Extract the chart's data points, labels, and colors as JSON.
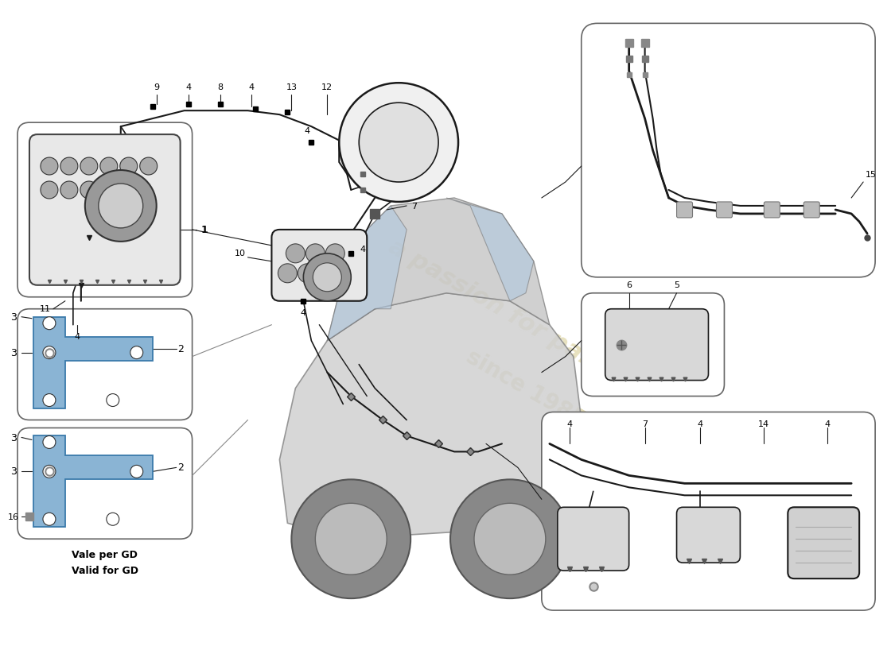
{
  "bg_color": "#ffffff",
  "line_color": "#1a1a1a",
  "blue_part": "#8ab4d4",
  "gray_part": "#c8c8c8",
  "dark_gray": "#606060",
  "box_border": "#666666",
  "watermark1": "#d4c88a",
  "watermark2": "#c8bc7a",
  "car_body": "#d0d0d0",
  "car_edge": "#888888",
  "text_vale": "Vale per GD",
  "text_valid": "Valid for GD",
  "wm_line1": "a passion for parts",
  "wm_line2": "since 1985"
}
